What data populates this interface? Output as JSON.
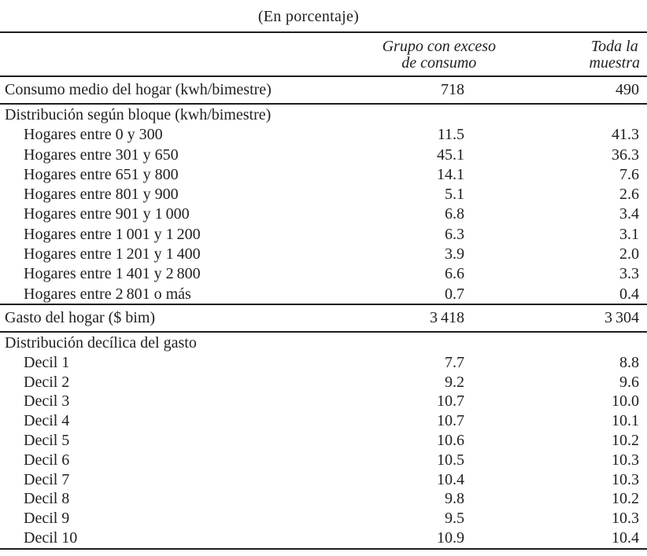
{
  "title": "(En porcentaje)",
  "header": {
    "excess_line1": "Grupo con exceso",
    "excess_line2": "de consumo",
    "sample_line1": "Toda la",
    "sample_line2": "muestra"
  },
  "rows": [
    {
      "label": "Consumo medio del hogar (kwh/bimestre)",
      "excess": "718",
      "sample": "490"
    },
    {
      "label": "Distribución según bloque (kwh/bimestre)",
      "excess": "",
      "sample": ""
    },
    {
      "label": "Hogares entre 0 y 300",
      "excess": "11.5",
      "sample": "41.3"
    },
    {
      "label": "Hogares entre 301 y 650",
      "excess": "45.1",
      "sample": "36.3"
    },
    {
      "label": "Hogares entre 651 y 800",
      "excess": "14.1",
      "sample": "7.6"
    },
    {
      "label": "Hogares entre 801 y 900",
      "excess": "5.1",
      "sample": "2.6"
    },
    {
      "label": "Hogares entre 901 y 1 000",
      "excess": "6.8",
      "sample": "3.4"
    },
    {
      "label": "Hogares entre 1 001 y 1 200",
      "excess": "6.3",
      "sample": "3.1"
    },
    {
      "label": "Hogares entre 1 201 y 1 400",
      "excess": "3.9",
      "sample": "2.0"
    },
    {
      "label": "Hogares entre 1 401 y 2 800",
      "excess": "6.6",
      "sample": "3.3"
    },
    {
      "label": "Hogares entre 2 801 o más",
      "excess": "0.7",
      "sample": "0.4"
    },
    {
      "label": "Gasto del hogar ($ bim)",
      "excess": "3 418",
      "sample": "3 304"
    },
    {
      "label": "Distribución decílica del gasto",
      "excess": "",
      "sample": ""
    },
    {
      "label": "Decil 1",
      "excess": "7.7",
      "sample": "8.8"
    },
    {
      "label": "Decil 2",
      "excess": "9.2",
      "sample": "9.6"
    },
    {
      "label": "Decil 3",
      "excess": "10.7",
      "sample": "10.0"
    },
    {
      "label": "Decil 4",
      "excess": "10.7",
      "sample": "10.1"
    },
    {
      "label": "Decil 5",
      "excess": "10.6",
      "sample": "10.2"
    },
    {
      "label": "Decil 6",
      "excess": "10.5",
      "sample": "10.3"
    },
    {
      "label": "Decil 7",
      "excess": "10.4",
      "sample": "10.3"
    },
    {
      "label": "Decil 8",
      "excess": "9.8",
      "sample": "10.2"
    },
    {
      "label": "Decil 9",
      "excess": "9.5",
      "sample": "10.3"
    },
    {
      "label": "Decil 10",
      "excess": "10.9",
      "sample": "10.4"
    }
  ],
  "colors": {
    "text": "#1f1f1f",
    "rule": "#1d1d1d",
    "background": "#ffffff"
  }
}
